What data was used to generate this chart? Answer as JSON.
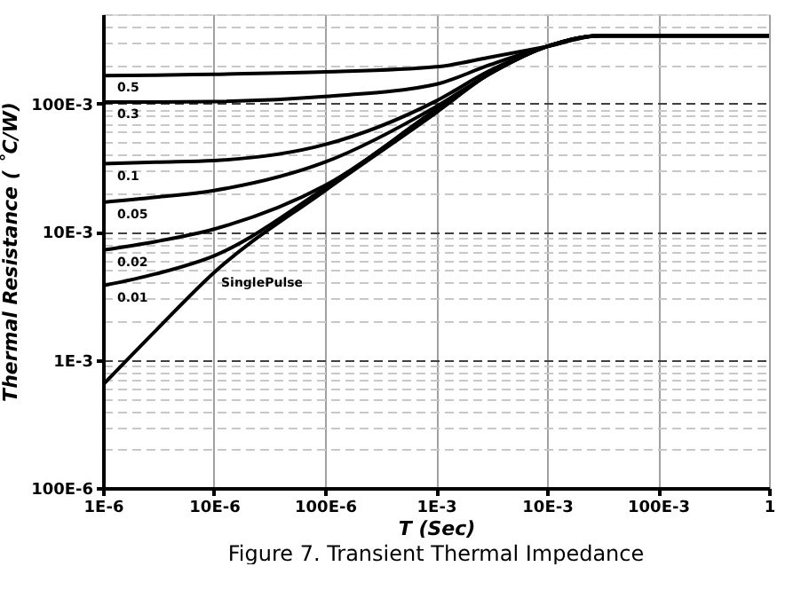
{
  "chart_data": {
    "type": "line",
    "xlabel": "T (Sec)",
    "ylabel": "Thermal Resistance ( ˚C/W)",
    "annotations": [
      "Figure 7. Transient Thermal Impedance",
      {
        "text": "SinglePulse",
        "x": 1e-05,
        "y": 0.0048
      }
    ],
    "x": [
      1e-06,
      3e-06,
      1e-05,
      0.0001,
      0.001,
      0.003,
      0.01,
      0.03,
      0.1,
      1
    ],
    "series": [
      {
        "name": "0.5",
        "color": "#000000",
        "values": [
          0.166,
          0.167,
          0.17,
          0.177,
          0.194,
          0.23,
          0.28,
          0.34,
          0.34,
          0.34
        ]
      },
      {
        "name": "0.3",
        "color": "#000000",
        "values": [
          0.103,
          0.103,
          0.104,
          0.114,
          0.142,
          0.2,
          0.28,
          0.34,
          0.34,
          0.34
        ]
      },
      {
        "name": "0.1",
        "color": "#000000",
        "values": [
          0.034,
          0.035,
          0.036,
          0.048,
          0.105,
          0.18,
          0.28,
          0.34,
          0.34,
          0.34
        ]
      },
      {
        "name": "0.05",
        "color": "#000000",
        "values": [
          0.017,
          0.0186,
          0.021,
          0.035,
          0.095,
          0.17,
          0.28,
          0.34,
          0.34,
          0.34
        ]
      },
      {
        "name": "0.02",
        "color": "#000000",
        "values": [
          0.0072,
          0.0084,
          0.0105,
          0.023,
          0.09,
          0.17,
          0.28,
          0.34,
          0.34,
          0.34
        ]
      },
      {
        "name": "0.01",
        "color": "#000000",
        "values": [
          0.0038,
          0.0047,
          0.0065,
          0.022,
          0.088,
          0.17,
          0.28,
          0.34,
          0.34,
          0.34
        ]
      },
      {
        "color": "#000000",
        "values": [
          0.00064,
          0.0017,
          0.0048,
          0.021,
          0.085,
          0.17,
          0.28,
          0.34,
          0.34,
          0.34
        ]
      }
    ],
    "log": "xy",
    "grid": true,
    "legend": false,
    "marker": "none",
    "line_style": "solid",
    "xlim": [
      1e-06,
      1
    ],
    "xticks": [
      {
        "value": 1e-06,
        "label": "1E-6"
      },
      {
        "value": 1e-05,
        "label": "10E-6"
      },
      {
        "value": 0.0001,
        "label": "100E-6"
      },
      {
        "value": 0.001,
        "label": "1E-3"
      },
      {
        "value": 0.01,
        "label": "10E-3"
      },
      {
        "value": 0.1,
        "label": "100E-3"
      },
      1
    ],
    "ylim": [
      0.0001,
      0.5
    ],
    "yticks": [
      {
        "value": 0.0001,
        "label": "100E-6"
      },
      {
        "value": 0.0002,
        "label": null
      },
      {
        "value": 0.0003,
        "label": null
      },
      {
        "value": 0.0004,
        "label": null
      },
      {
        "value": 0.0005,
        "label": null
      },
      {
        "value": 0.0006,
        "label": null
      },
      {
        "value": 0.0007,
        "label": null
      },
      {
        "value": 0.0008,
        "label": null
      },
      {
        "value": 0.0009,
        "label": null
      },
      {
        "value": 0.001,
        "label": "1E-3"
      },
      {
        "value": 0.002,
        "label": null
      },
      {
        "value": 0.003,
        "label": null
      },
      {
        "value": 0.004,
        "label": null
      },
      {
        "value": 0.005,
        "label": null
      },
      {
        "value": 0.006,
        "label": null
      },
      {
        "value": 0.007,
        "label": null
      },
      {
        "value": 0.008,
        "label": null
      },
      {
        "value": 0.009,
        "label": null
      },
      {
        "value": 0.01,
        "label": "10E-3"
      },
      {
        "value": 0.02,
        "label": null
      },
      {
        "value": 0.03,
        "label": null
      },
      {
        "value": 0.04,
        "label": null
      },
      {
        "value": 0.05,
        "label": null
      },
      {
        "value": 0.06,
        "label": null
      },
      {
        "value": 0.07,
        "label": null
      },
      {
        "value": 0.08,
        "label": null
      },
      {
        "value": 0.09,
        "label": null
      },
      {
        "value": 0.1,
        "label": "100E-3"
      },
      {
        "value": 0.2,
        "label": null
      },
      {
        "value": 0.3,
        "label": null
      },
      {
        "value": 0.4,
        "label": null
      },
      {
        "value": 0.5,
        "label": null
      }
    ]
  }
}
